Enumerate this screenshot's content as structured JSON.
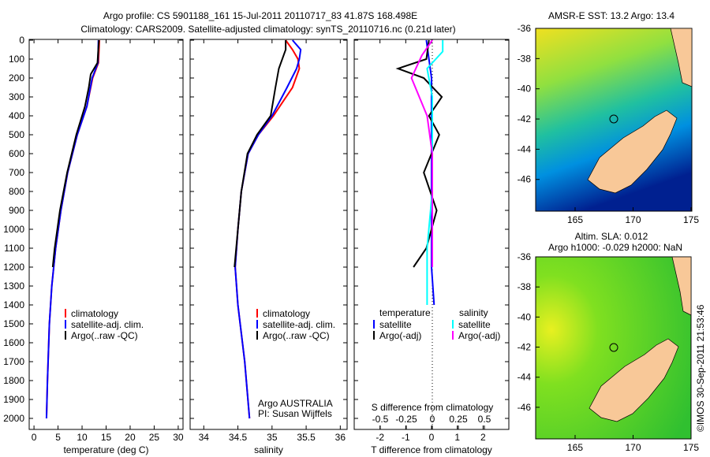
{
  "title_line1": "Argo profile: CS 5901188_161 15-Jul-2011 20110717_83 41.87S 168.498E",
  "title_line2": "Climatology: CARS2009. Satellite-adjusted climatology: synTS_20110716.nc (0.21d later)",
  "colors": {
    "climatology": "#ff0000",
    "satellite": "#0000ff",
    "argo": "#000000",
    "sal_sat": "#00ffff",
    "sal_argo": "#ff00ff",
    "land": "#f8c898"
  },
  "chart_data": [
    {
      "type": "line",
      "name": "temperature",
      "xlabel": "temperature (deg C)",
      "xlim": [
        -1,
        31
      ],
      "ylim": [
        0,
        2050
      ],
      "xticks": [
        0,
        5,
        10,
        15,
        20,
        25,
        30
      ],
      "yticks": [
        0,
        100,
        200,
        300,
        400,
        500,
        600,
        700,
        800,
        900,
        1000,
        1100,
        1200,
        1300,
        1400,
        1500,
        1600,
        1700,
        1800,
        1900,
        2000
      ],
      "legend": [
        "climatology",
        "satellite-adj. clim.",
        "Argo(..raw -QC)"
      ],
      "series": [
        {
          "name": "climatology",
          "depth": [
            0,
            120,
            200,
            350,
            500,
            700,
            900,
            1100,
            1300,
            1500,
            1800,
            2000
          ],
          "values": [
            13.6,
            13.4,
            12.2,
            11,
            9,
            7,
            5.6,
            4.5,
            3.7,
            3.2,
            2.8,
            2.6
          ]
        },
        {
          "name": "satellite-adj. clim.",
          "depth": [
            0,
            120,
            200,
            350,
            500,
            700,
            900,
            1100,
            1300,
            1500,
            1800,
            2000
          ],
          "values": [
            13.4,
            13.3,
            12.1,
            11,
            9,
            7,
            5.6,
            4.5,
            3.7,
            3.2,
            2.8,
            2.6
          ]
        },
        {
          "name": "Argo",
          "depth": [
            0,
            120,
            180,
            250,
            350,
            500,
            700,
            900,
            1100,
            1200
          ],
          "values": [
            13.5,
            13.2,
            11.8,
            11.4,
            10.6,
            8.8,
            6.9,
            5.4,
            4.3,
            3.9
          ]
        }
      ]
    },
    {
      "type": "line",
      "name": "salinity",
      "xlabel": "salinity",
      "xlim": [
        33.8,
        36.1
      ],
      "ylim": [
        0,
        2050
      ],
      "xticks": [
        34,
        34.5,
        35,
        35.5,
        36
      ],
      "legend": [
        "climatology",
        "satellite-adj. clim.",
        "Argo(..raw -QC)"
      ],
      "annotation": [
        "Argo AUSTRALIA",
        "PI: Susan Wijffels"
      ],
      "series": [
        {
          "name": "climatology",
          "depth": [
            0,
            50,
            100,
            150,
            250,
            400,
            500,
            600,
            800,
            1000,
            1200,
            1400,
            1700,
            2000
          ],
          "values": [
            35.2,
            35.3,
            35.38,
            35.4,
            35.3,
            35.02,
            34.8,
            34.65,
            34.55,
            34.5,
            34.46,
            34.5,
            34.6,
            34.67
          ]
        },
        {
          "name": "satellite-adj. clim.",
          "depth": [
            0,
            50,
            100,
            150,
            250,
            400,
            500,
            600,
            800,
            1000,
            1200,
            1400,
            1700,
            2000
          ],
          "values": [
            35.3,
            35.42,
            35.4,
            35.36,
            35.22,
            35.0,
            34.8,
            34.65,
            34.55,
            34.5,
            34.46,
            34.5,
            34.6,
            34.67
          ]
        },
        {
          "name": "Argo",
          "depth": [
            0,
            50,
            150,
            250,
            400,
            500,
            600,
            800,
            1000,
            1200
          ],
          "values": [
            35.2,
            35.2,
            35.1,
            35.05,
            34.98,
            34.78,
            34.64,
            34.55,
            34.5,
            34.45
          ]
        }
      ]
    },
    {
      "type": "line",
      "name": "difference",
      "xlabel": "T difference from climatology",
      "x2label": "S difference from climatology",
      "xlim": [
        -3,
        3
      ],
      "xticks": [
        -2,
        -1,
        0,
        1,
        2
      ],
      "x2ticks": [
        "-0.5",
        "-0.25",
        "0",
        "0.25",
        "0.5"
      ],
      "legend": {
        "temp_head": "temperature",
        "sal_head": "salinity",
        "items": [
          "satellite",
          "Argo(-adj)",
          "satellite",
          "Argo(-adj)"
        ]
      },
      "series": [
        {
          "name": "T satellite",
          "depth": [
            0,
            100,
            200,
            400,
            600,
            800,
            1000,
            1200,
            1400
          ],
          "values": [
            -0.2,
            -0.1,
            0,
            0,
            0,
            0,
            0,
            0,
            0.1
          ]
        },
        {
          "name": "T Argo",
          "depth": [
            0,
            100,
            150,
            200,
            300,
            400,
            500,
            700,
            900,
            1100,
            1200
          ],
          "values": [
            -0.1,
            -0.2,
            -1.3,
            -0.3,
            0.4,
            -0.1,
            0.3,
            -0.3,
            0.2,
            -0.2,
            -0.7
          ]
        },
        {
          "name": "S satellite",
          "depth": [
            0,
            60,
            150,
            300,
            500,
            800,
            1100,
            1400
          ],
          "values": [
            0.1,
            0.1,
            -0.05,
            0,
            0,
            0,
            -0.05,
            -0.05
          ]
        },
        {
          "name": "S Argo",
          "depth": [
            0,
            80,
            200,
            400,
            600,
            900,
            1200
          ],
          "values": [
            0,
            -0.1,
            -0.2,
            -0.05,
            0,
            0,
            0
          ]
        }
      ]
    }
  ],
  "map1": {
    "title": "AMSR-E SST: 13.2 Argo: 13.4",
    "yticks": [
      "-36",
      "-38",
      "-40",
      "-42",
      "-44",
      "-46"
    ],
    "xticks": [
      "165",
      "170",
      "175"
    ]
  },
  "map2": {
    "title1": "Altim. SLA: 0.012",
    "title2": "Argo h1000: -0.029 h2000: NaN",
    "yticks": [
      "-36",
      "-38",
      "-40",
      "-42",
      "-44",
      "-46"
    ],
    "xticks": [
      "165",
      "170",
      "175"
    ]
  },
  "credit": "©IMOS 30-Sep-2011 21:53:46"
}
